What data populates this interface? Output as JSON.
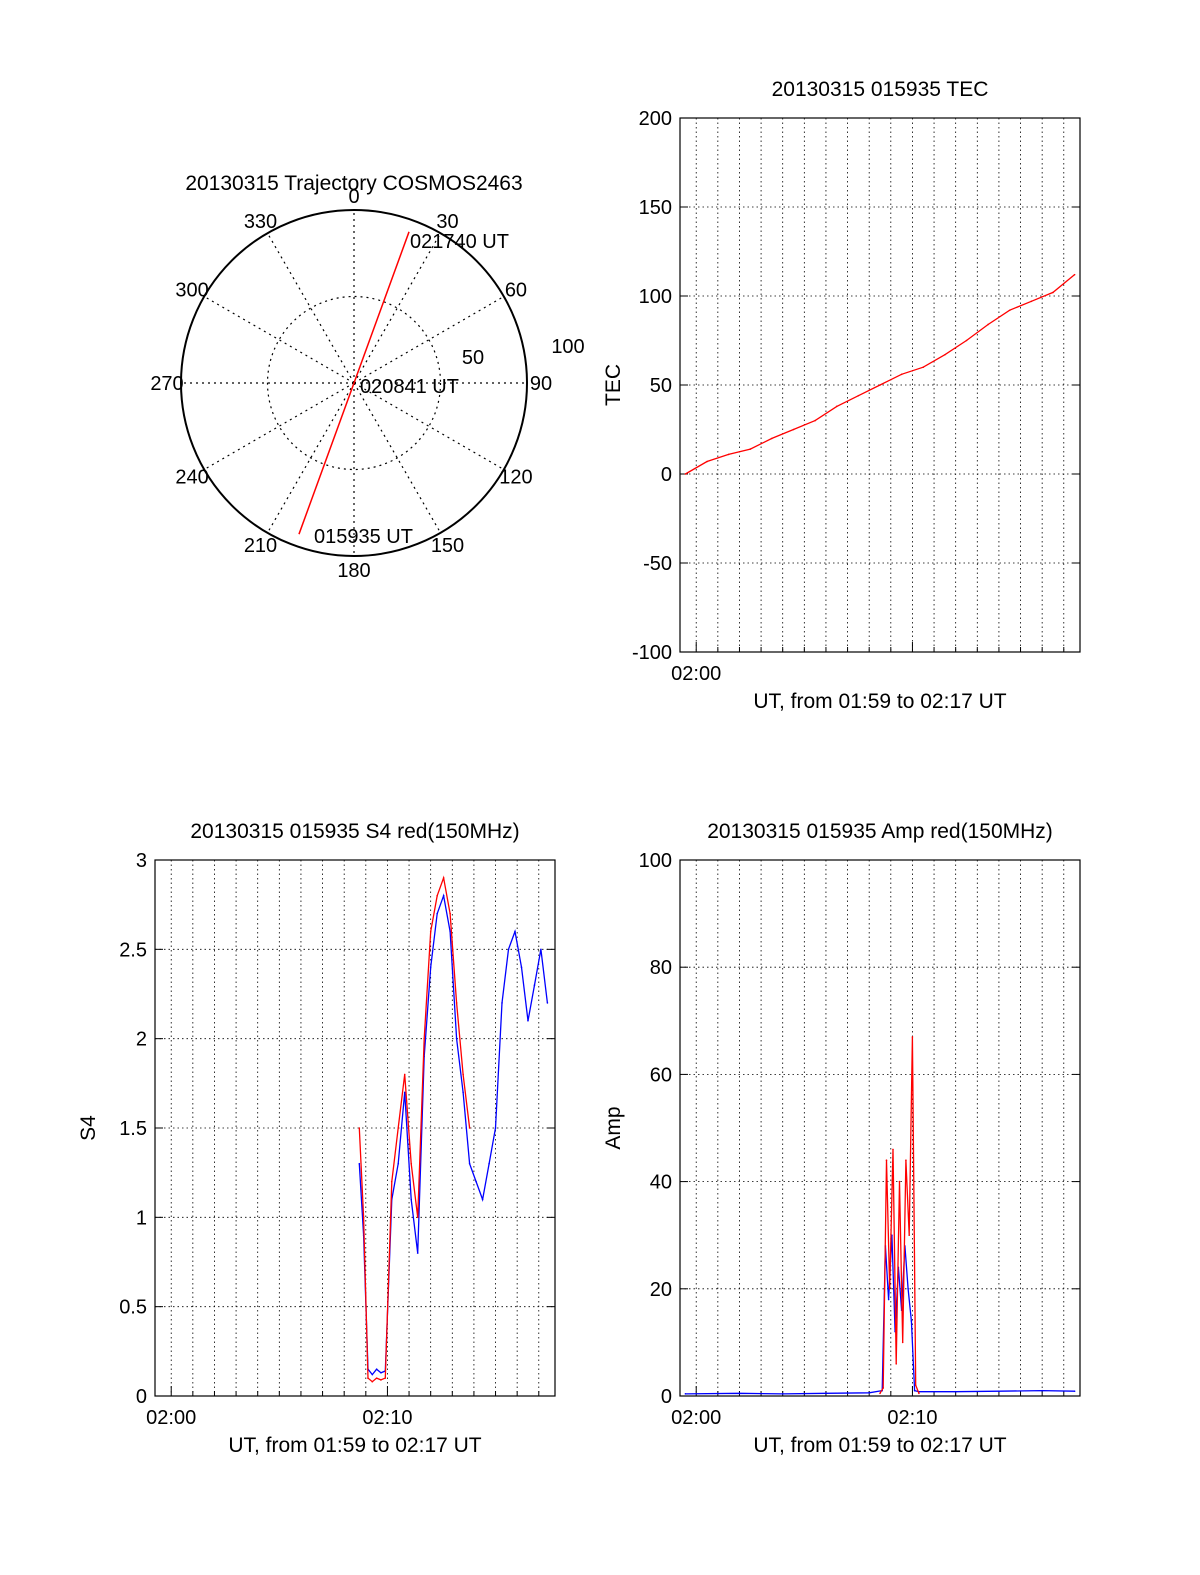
{
  "colors": {
    "red": "#ff0000",
    "blue": "#0000ff",
    "grid": "#000000"
  },
  "polar": {
    "title": "20130315 Trajectory COSMOS2463",
    "azimuth_ticks": [
      "0",
      "30",
      "60",
      "90",
      "120",
      "150",
      "180",
      "210",
      "240",
      "270",
      "300",
      "330"
    ],
    "radial_ticks": [
      "50",
      "100"
    ],
    "rmax": 100,
    "track": {
      "start": {
        "az": 200,
        "r": 93
      },
      "end": {
        "az": 20,
        "r": 93
      }
    },
    "annotations": {
      "end_time": "021740 UT",
      "mid_time": "020841 UT",
      "start_time": "015935 UT"
    }
  },
  "chart_data": [
    {
      "id": "tec",
      "type": "line",
      "title": "20130315 015935 TEC",
      "xlabel": "UT, from 01:59 to 02:17 UT",
      "ylabel": "TEC",
      "xlim": [
        -0.75,
        17.75
      ],
      "ylim": [
        -100,
        200
      ],
      "yticks": [
        "200",
        "150",
        "100",
        "50",
        "0",
        "-50",
        "-100"
      ],
      "xticks": [
        {
          "x": 0,
          "label": "02:00"
        }
      ],
      "grid": true,
      "series": [
        {
          "color": "#ff0000",
          "x": [
            -0.5,
            0.5,
            1.5,
            2.5,
            3.5,
            4.5,
            5.5,
            6.5,
            7.5,
            8.5,
            9.5,
            10.5,
            11.5,
            12.5,
            13.5,
            14.5,
            15.5,
            16.5,
            17.5
          ],
          "y": [
            0,
            7,
            11,
            14,
            20,
            25,
            30,
            38,
            44,
            50,
            56,
            60,
            67,
            75,
            84,
            92,
            97,
            102,
            112
          ]
        }
      ]
    },
    {
      "id": "s4",
      "type": "line",
      "title": "20130315 015935 S4 red(150MHz)",
      "xlabel": "UT, from 01:59 to 02:17 UT",
      "ylabel": "S4",
      "xlim": [
        -0.75,
        17.75
      ],
      "ylim": [
        0,
        3
      ],
      "yticks": [
        "3",
        "2.5",
        "2",
        "1.5",
        "1",
        "0.5",
        "0"
      ],
      "xticks": [
        {
          "x": 0,
          "label": "02:00"
        },
        {
          "x": 10,
          "label": "02:10"
        }
      ],
      "grid": true,
      "series": [
        {
          "color": "#0000ff",
          "x": [
            8.7,
            8.9,
            9.1,
            9.3,
            9.5,
            9.7,
            9.9,
            10.2,
            10.5,
            10.8,
            11.1,
            11.4,
            11.7,
            12.0,
            12.3,
            12.6,
            12.9,
            13.2,
            13.5,
            13.8,
            14.1,
            14.4,
            14.7,
            15.0,
            15.3,
            15.6,
            15.9,
            16.2,
            16.5,
            16.8,
            17.1,
            17.4
          ],
          "y": [
            1.3,
            0.9,
            0.15,
            0.12,
            0.15,
            0.13,
            0.14,
            1.1,
            1.3,
            1.7,
            1.1,
            0.8,
            1.9,
            2.4,
            2.7,
            2.8,
            2.6,
            2.0,
            1.7,
            1.3,
            1.2,
            1.1,
            1.3,
            1.5,
            2.2,
            2.5,
            2.6,
            2.4,
            2.1,
            2.3,
            2.5,
            2.2
          ]
        },
        {
          "color": "#ff0000",
          "x": [
            8.7,
            8.9,
            9.1,
            9.3,
            9.5,
            9.7,
            9.9,
            10.2,
            10.5,
            10.8,
            11.1,
            11.4,
            11.7,
            12.0,
            12.3,
            12.6,
            12.9,
            13.2,
            13.5,
            13.8
          ],
          "y": [
            1.5,
            1.0,
            0.1,
            0.08,
            0.1,
            0.09,
            0.1,
            1.2,
            1.5,
            1.8,
            1.3,
            1.0,
            2.0,
            2.6,
            2.8,
            2.9,
            2.7,
            2.2,
            1.8,
            1.5
          ]
        }
      ]
    },
    {
      "id": "amp",
      "type": "line",
      "title": "20130315 015935 Amp red(150MHz)",
      "xlabel": "UT, from 01:59 to 02:17 UT",
      "ylabel": "Amp",
      "xlim": [
        -0.75,
        17.75
      ],
      "ylim": [
        0,
        100
      ],
      "yticks": [
        "100",
        "80",
        "60",
        "40",
        "20",
        "0"
      ],
      "xticks": [
        {
          "x": 0,
          "label": "02:00"
        },
        {
          "x": 10,
          "label": "02:10"
        }
      ],
      "grid": true,
      "series": [
        {
          "color": "#0000ff",
          "x": [
            -0.5,
            2,
            4,
            6,
            8,
            8.6,
            8.75,
            8.9,
            9.05,
            9.2,
            9.35,
            9.5,
            9.65,
            9.8,
            9.95,
            10.1,
            10.3,
            12,
            14,
            16,
            17.5
          ],
          "y": [
            0.4,
            0.5,
            0.4,
            0.5,
            0.6,
            1,
            28,
            18,
            30,
            12,
            24,
            16,
            28,
            20,
            14,
            1,
            0.8,
            0.8,
            0.9,
            1.0,
            0.9
          ]
        },
        {
          "color": "#ff0000",
          "x": [
            8.5,
            8.65,
            8.8,
            8.95,
            9.1,
            9.25,
            9.4,
            9.55,
            9.7,
            9.85,
            10.0,
            10.15,
            10.3
          ],
          "y": [
            0.5,
            1.5,
            44,
            20,
            46,
            6,
            40,
            10,
            44,
            30,
            67,
            2,
            0.5
          ]
        }
      ]
    }
  ]
}
